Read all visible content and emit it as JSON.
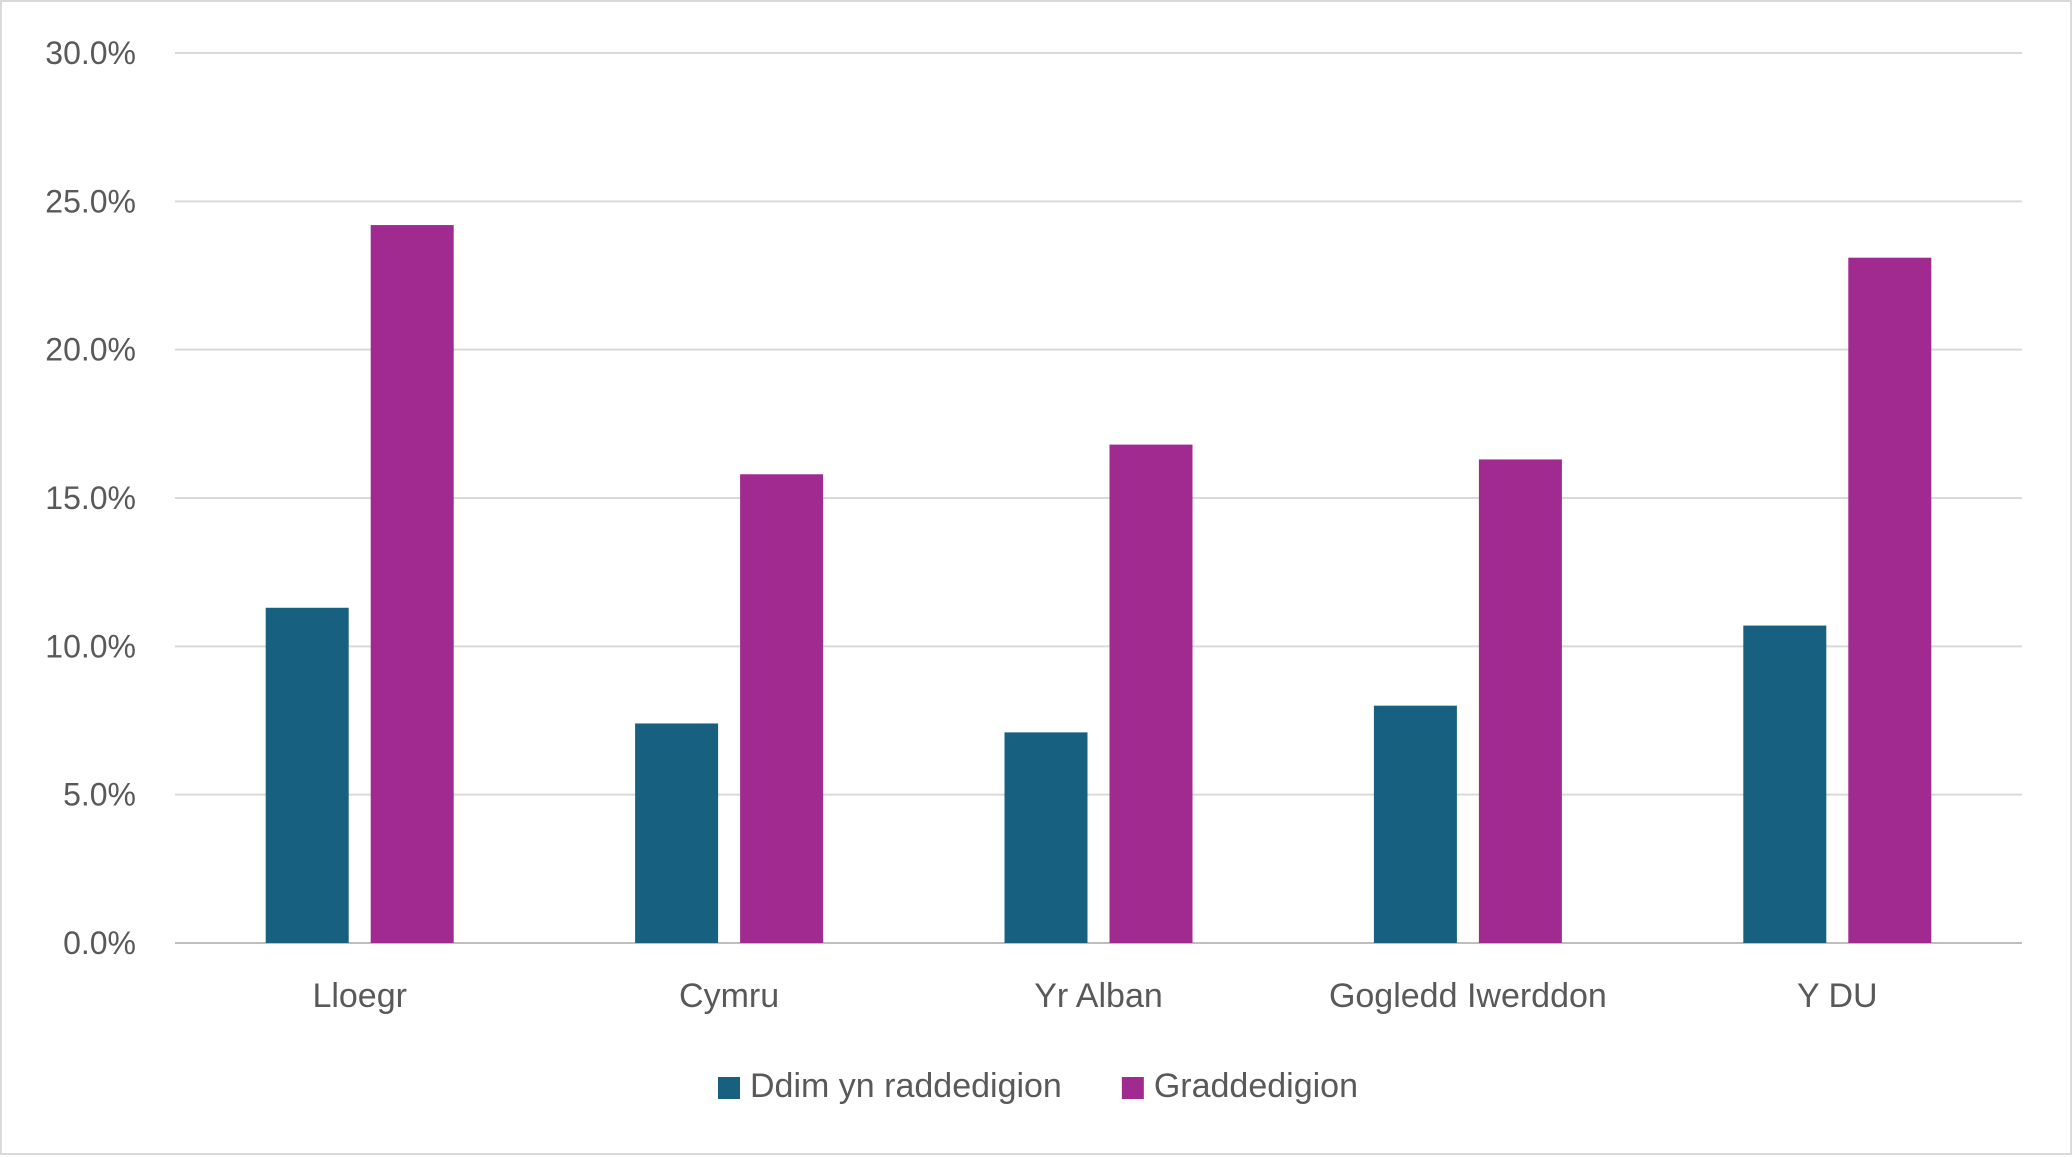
{
  "chart_data": {
    "type": "bar",
    "categories": [
      "Lloegr",
      "Cymru",
      "Yr Alban",
      "Gogledd Iwerddon",
      "Y DU"
    ],
    "series": [
      {
        "name": "Ddim yn raddedigion",
        "color": "#17607f",
        "values": [
          11.3,
          7.4,
          7.1,
          8.0,
          10.7
        ]
      },
      {
        "name": "Graddedigion",
        "color": "#a12a91",
        "values": [
          24.2,
          15.8,
          16.8,
          16.3,
          23.1
        ]
      }
    ],
    "ylim": [
      0,
      30
    ],
    "yticks": [
      0,
      5,
      10,
      15,
      20,
      25,
      30
    ],
    "ytick_labels": [
      "0.0%",
      "5.0%",
      "10.0%",
      "15.0%",
      "20.0%",
      "25.0%",
      "30.0%"
    ],
    "grid": true,
    "legend": "bottom-center",
    "title": "",
    "xlabel": "",
    "ylabel": ""
  }
}
